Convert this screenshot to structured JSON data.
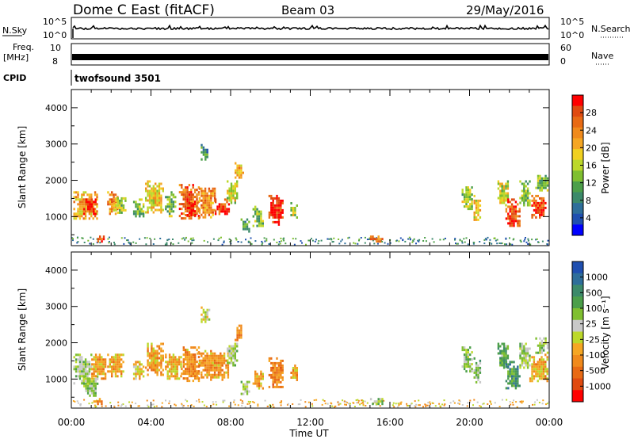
{
  "header": {
    "station": "Dome C East (fitACF)",
    "beam": "Beam 03",
    "date": "29/May/2016"
  },
  "strips": {
    "nsky": {
      "label": "N.Sky",
      "ticks": [
        "10^5",
        "10^0"
      ]
    },
    "nsearch": {
      "label": "N.Search",
      "ticks": [
        "10^5",
        "10^0"
      ]
    },
    "freq": {
      "label_line1": "Freq.",
      "label_line2": "[MHz]",
      "ticks": [
        "10",
        "8"
      ]
    },
    "nave": {
      "label": "Nave",
      "ticks": [
        "60",
        "0"
      ]
    },
    "cpid": {
      "label": "CPID",
      "value": "twofsound 3501"
    }
  },
  "power_colorbar": {
    "label": "Power [dB]",
    "ticks": [
      "28",
      "24",
      "20",
      "16",
      "12",
      "8",
      "4"
    ],
    "colors": [
      "#0000ff",
      "#1f4fb0",
      "#2e6e9a",
      "#3c8a6a",
      "#4c9f4a",
      "#7fbf30",
      "#bcd82a",
      "#f0d020",
      "#f5a623",
      "#f08a1c",
      "#e86a14",
      "#e04a10",
      "#ff0000"
    ]
  },
  "velocity_colorbar": {
    "label": "Velocity [m s⁻¹]",
    "ticks": [
      "1000",
      "500",
      "100",
      "25",
      "-25",
      "-100",
      "-500",
      "-1000"
    ],
    "colors": [
      "#1f4fb0",
      "#2e6e9a",
      "#3c8a6a",
      "#4c9f4a",
      "#7fbf30",
      "#c8c8c8",
      "#bcd82a",
      "#f5a623",
      "#f08a1c",
      "#e86a14",
      "#e04a10",
      "#ff0000"
    ]
  },
  "chart_data": [
    {
      "type": "heatmap",
      "title": "Power",
      "xlabel": "Time UT",
      "ylabel": "Slant Range [km]",
      "x_ticks": [
        "00:00",
        "04:00",
        "08:00",
        "12:00",
        "16:00",
        "20:00",
        "00:00"
      ],
      "xlim": [
        0,
        24
      ],
      "y_ticks": [
        "1000",
        "2000",
        "3000",
        "4000"
      ],
      "ylim": [
        200,
        4500
      ],
      "colorbar_range": [
        0,
        30
      ],
      "regions": [
        {
          "t": [
            0.1,
            1.3
          ],
          "r": [
            950,
            1700
          ],
          "v": 20
        },
        {
          "t": [
            0.6,
            1.2
          ],
          "r": [
            1100,
            1500
          ],
          "v": 28
        },
        {
          "t": [
            1.2,
            1.6
          ],
          "r": [
            330,
            480
          ],
          "v": 26
        },
        {
          "t": [
            1.8,
            2.3
          ],
          "r": [
            1050,
            1700
          ],
          "v": 22
        },
        {
          "t": [
            2.1,
            2.7
          ],
          "r": [
            1100,
            1600
          ],
          "v": 14
        },
        {
          "t": [
            3.1,
            3.6
          ],
          "r": [
            1000,
            1500
          ],
          "v": 12
        },
        {
          "t": [
            3.7,
            4.6
          ],
          "r": [
            1100,
            2000
          ],
          "v": 18
        },
        {
          "t": [
            4.7,
            5.2
          ],
          "r": [
            1000,
            1700
          ],
          "v": 12
        },
        {
          "t": [
            5.4,
            6.4
          ],
          "r": [
            950,
            1900
          ],
          "v": 24
        },
        {
          "t": [
            5.7,
            6.2
          ],
          "r": [
            1050,
            1400
          ],
          "v": 28
        },
        {
          "t": [
            6.3,
            7.2
          ],
          "r": [
            1000,
            1800
          ],
          "v": 22
        },
        {
          "t": [
            6.5,
            6.9
          ],
          "r": [
            2600,
            3000
          ],
          "v": 8
        },
        {
          "t": [
            7.2,
            7.9
          ],
          "r": [
            1050,
            1500
          ],
          "v": 26
        },
        {
          "t": [
            7.8,
            8.3
          ],
          "r": [
            1400,
            2000
          ],
          "v": 16
        },
        {
          "t": [
            8.2,
            8.6
          ],
          "r": [
            2050,
            2500
          ],
          "v": 20
        },
        {
          "t": [
            8.5,
            8.9
          ],
          "r": [
            600,
            950
          ],
          "v": 10
        },
        {
          "t": [
            9.1,
            9.6
          ],
          "r": [
            750,
            1300
          ],
          "v": 12
        },
        {
          "t": [
            9.9,
            10.6
          ],
          "r": [
            800,
            1600
          ],
          "v": 28
        },
        {
          "t": [
            11.0,
            11.3
          ],
          "r": [
            1000,
            1400
          ],
          "v": 14
        },
        {
          "t": [
            15.0,
            15.6
          ],
          "r": [
            330,
            480
          ],
          "v": 24
        },
        {
          "t": [
            19.6,
            20.1
          ],
          "r": [
            1200,
            1900
          ],
          "v": 14
        },
        {
          "t": [
            20.2,
            20.5
          ],
          "r": [
            900,
            1600
          ],
          "v": 18
        },
        {
          "t": [
            21.4,
            21.9
          ],
          "r": [
            1300,
            2000
          ],
          "v": 16
        },
        {
          "t": [
            21.8,
            22.5
          ],
          "r": [
            750,
            1500
          ],
          "v": 26
        },
        {
          "t": [
            22.5,
            23.0
          ],
          "r": [
            1300,
            2000
          ],
          "v": 12
        },
        {
          "t": [
            23.1,
            23.8
          ],
          "r": [
            950,
            1600
          ],
          "v": 26
        },
        {
          "t": [
            23.3,
            23.9
          ],
          "r": [
            1700,
            2150
          ],
          "v": 12
        }
      ]
    },
    {
      "type": "heatmap",
      "title": "Velocity",
      "xlabel": "Time UT",
      "ylabel": "Slant Range [km]",
      "x_ticks": [
        "00:00",
        "04:00",
        "08:00",
        "12:00",
        "16:00",
        "20:00",
        "00:00"
      ],
      "xlim": [
        0,
        24
      ],
      "y_ticks": [
        "1000",
        "2000",
        "3000",
        "4000"
      ],
      "ylim": [
        200,
        4500
      ],
      "colorbar_range": [
        -1000,
        1000
      ],
      "regions": [
        {
          "t": [
            0.1,
            1.0
          ],
          "r": [
            900,
            1700
          ],
          "v": 150
        },
        {
          "t": [
            0.6,
            1.3
          ],
          "r": [
            550,
            1100
          ],
          "v": 200
        },
        {
          "t": [
            1.0,
            1.7
          ],
          "r": [
            1000,
            1700
          ],
          "v": -300
        },
        {
          "t": [
            1.1,
            1.6
          ],
          "r": [
            330,
            480
          ],
          "v": -400
        },
        {
          "t": [
            1.8,
            2.6
          ],
          "r": [
            1100,
            1700
          ],
          "v": -300
        },
        {
          "t": [
            3.1,
            3.6
          ],
          "r": [
            1000,
            1500
          ],
          "v": -200
        },
        {
          "t": [
            3.7,
            4.6
          ],
          "r": [
            1100,
            2000
          ],
          "v": -350
        },
        {
          "t": [
            4.7,
            5.5
          ],
          "r": [
            1000,
            1700
          ],
          "v": -250
        },
        {
          "t": [
            5.5,
            6.4
          ],
          "r": [
            950,
            1900
          ],
          "v": -400
        },
        {
          "t": [
            6.5,
            6.9
          ],
          "r": [
            2600,
            3000
          ],
          "v": 0
        },
        {
          "t": [
            6.3,
            7.9
          ],
          "r": [
            1000,
            1800
          ],
          "v": -350
        },
        {
          "t": [
            7.8,
            8.3
          ],
          "r": [
            1400,
            2000
          ],
          "v": 150
        },
        {
          "t": [
            8.2,
            8.6
          ],
          "r": [
            2050,
            2500
          ],
          "v": -400
        },
        {
          "t": [
            8.5,
            8.9
          ],
          "r": [
            600,
            950
          ],
          "v": 150
        },
        {
          "t": [
            9.1,
            9.6
          ],
          "r": [
            750,
            1300
          ],
          "v": -300
        },
        {
          "t": [
            9.9,
            10.6
          ],
          "r": [
            800,
            1600
          ],
          "v": -450
        },
        {
          "t": [
            11.0,
            11.3
          ],
          "r": [
            1000,
            1400
          ],
          "v": -300
        },
        {
          "t": [
            15.0,
            15.6
          ],
          "r": [
            330,
            480
          ],
          "v": 150
        },
        {
          "t": [
            19.6,
            20.1
          ],
          "r": [
            1200,
            1900
          ],
          "v": 200
        },
        {
          "t": [
            20.2,
            20.5
          ],
          "r": [
            900,
            1600
          ],
          "v": 300
        },
        {
          "t": [
            21.4,
            21.9
          ],
          "r": [
            1300,
            2000
          ],
          "v": 400
        },
        {
          "t": [
            21.8,
            22.5
          ],
          "r": [
            750,
            1500
          ],
          "v": 500
        },
        {
          "t": [
            22.5,
            23.0
          ],
          "r": [
            1300,
            2000
          ],
          "v": 150
        },
        {
          "t": [
            23.0,
            23.9
          ],
          "r": [
            950,
            1700
          ],
          "v": -300
        },
        {
          "t": [
            23.3,
            23.9
          ],
          "r": [
            1700,
            2150
          ],
          "v": 150
        }
      ]
    }
  ]
}
